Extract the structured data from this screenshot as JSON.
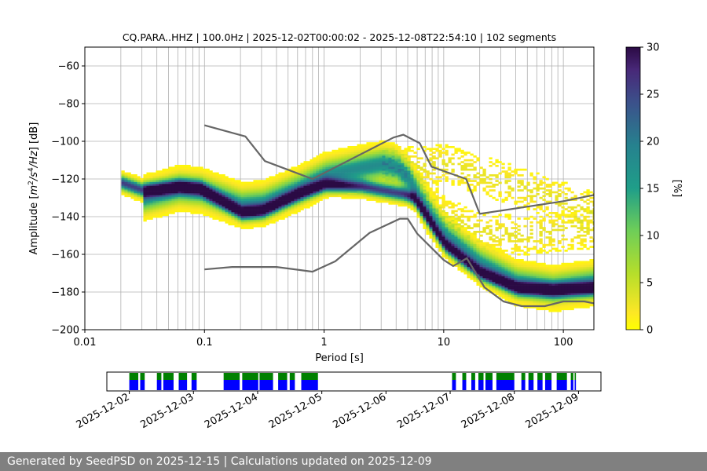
{
  "chart_data": {
    "type": "heatmap",
    "title": "CQ.PARA..HHZ | 100.0Hz | 2025-12-02T00:00:02 - 2025-12-08T22:54:10 | 102 segments",
    "xlabel": "Period [s]",
    "ylabel": "Amplitude [m²/s⁴/Hz] [dB]",
    "xscale": "log",
    "xlim": [
      0.01,
      180
    ],
    "ylim": [
      -200,
      -50
    ],
    "xticks": [
      {
        "value": 0.01,
        "label": "0.01"
      },
      {
        "value": 0.1,
        "label": "0.1"
      },
      {
        "value": 1,
        "label": "1"
      },
      {
        "value": 10,
        "label": "10"
      },
      {
        "value": 100,
        "label": "100"
      }
    ],
    "yticks": [
      {
        "value": -60,
        "label": "−60"
      },
      {
        "value": -80,
        "label": "−80"
      },
      {
        "value": -100,
        "label": "−100"
      },
      {
        "value": -120,
        "label": "−120"
      },
      {
        "value": -140,
        "label": "−140"
      },
      {
        "value": -160,
        "label": "−160"
      },
      {
        "value": -180,
        "label": "−180"
      },
      {
        "value": -200,
        "label": "−200"
      }
    ],
    "colorbar": {
      "label": "[%]",
      "min": 0,
      "max": 30,
      "ticks": [
        {
          "value": 0,
          "label": "0"
        },
        {
          "value": 5,
          "label": "5"
        },
        {
          "value": 10,
          "label": "10"
        },
        {
          "value": 15,
          "label": "15"
        },
        {
          "value": 20,
          "label": "20"
        },
        {
          "value": 25,
          "label": "25"
        },
        {
          "value": 30,
          "label": "30"
        }
      ]
    },
    "nhnm": {
      "name": "New High Noise Model",
      "points": [
        [
          0.1,
          -91.5
        ],
        [
          0.22,
          -97.4
        ],
        [
          0.32,
          -110.5
        ],
        [
          0.8,
          -120
        ],
        [
          3.8,
          -98
        ],
        [
          4.6,
          -96.5
        ],
        [
          6.3,
          -101
        ],
        [
          7.9,
          -113.5
        ],
        [
          15.4,
          -120
        ],
        [
          20,
          -138.5
        ],
        [
          100,
          -131.8
        ],
        [
          180,
          -128.5
        ]
      ]
    },
    "nlnm": {
      "name": "New Low Noise Model",
      "points": [
        [
          0.1,
          -168
        ],
        [
          0.17,
          -166.7
        ],
        [
          0.4,
          -166.7
        ],
        [
          0.8,
          -169.2
        ],
        [
          1.24,
          -163.7
        ],
        [
          2.4,
          -148.6
        ],
        [
          4.3,
          -141.1
        ],
        [
          5,
          -141.1
        ],
        [
          6,
          -149
        ],
        [
          10,
          -163
        ],
        [
          12,
          -166.2
        ],
        [
          15.6,
          -162.1
        ],
        [
          21.9,
          -177.5
        ],
        [
          31.6,
          -185
        ],
        [
          45,
          -187.5
        ],
        [
          70,
          -187.5
        ],
        [
          100,
          -185
        ],
        [
          150,
          -185
        ],
        [
          180,
          -186
        ]
      ]
    },
    "density_bands": [
      {
        "name": "microseism peak",
        "points": [
          [
            0.03,
            -130
          ],
          [
            0.06,
            -125
          ],
          [
            0.09,
            -126
          ],
          [
            0.2,
            -134
          ],
          [
            0.3,
            -133
          ],
          [
            0.6,
            -125
          ],
          [
            1,
            -118
          ],
          [
            2,
            -114
          ],
          [
            3,
            -112
          ],
          [
            4,
            -114
          ],
          [
            5,
            -120
          ],
          [
            7,
            -136
          ],
          [
            10,
            -150
          ],
          [
            20,
            -165
          ],
          [
            40,
            -175
          ],
          [
            80,
            -178
          ],
          [
            180,
            -175
          ]
        ],
        "width_db": 8,
        "peak_pct": 18
      },
      {
        "name": "lower branch",
        "points": [
          [
            0.02,
            -122
          ],
          [
            0.03,
            -126
          ],
          [
            0.06,
            -124
          ],
          [
            0.09,
            -125
          ],
          [
            0.2,
            -138
          ],
          [
            0.3,
            -137
          ],
          [
            0.6,
            -128
          ],
          [
            1,
            -123
          ],
          [
            2,
            -124
          ],
          [
            3,
            -126
          ],
          [
            4.5,
            -128
          ],
          [
            5.5,
            -130
          ],
          [
            7,
            -140
          ],
          [
            10,
            -155
          ],
          [
            20,
            -170
          ],
          [
            40,
            -178
          ],
          [
            80,
            -179
          ],
          [
            180,
            -178
          ]
        ],
        "width_db": 4,
        "peak_pct": 26
      },
      {
        "name": "scattered upper",
        "points": [
          [
            3,
            -112
          ],
          [
            6,
            -114
          ],
          [
            10,
            -112
          ],
          [
            20,
            -118
          ],
          [
            50,
            -126
          ],
          [
            100,
            -132
          ],
          [
            180,
            -138
          ]
        ],
        "width_db": 10,
        "peak_pct": 3
      },
      {
        "name": "scattered mid",
        "points": [
          [
            6,
            -125
          ],
          [
            10,
            -140
          ],
          [
            20,
            -148
          ],
          [
            40,
            -150
          ],
          [
            80,
            -148
          ],
          [
            180,
            -146
          ]
        ],
        "width_db": 10,
        "peak_pct": 3
      }
    ],
    "availability": {
      "dates": [
        "2025-12-02",
        "2025-12-03",
        "2025-12-04",
        "2025-12-05",
        "2025-12-06",
        "2025-12-07",
        "2025-12-08",
        "2025-12-09"
      ],
      "range_days": [
        -0.35,
        7.35
      ],
      "segments": [
        [
          0.0,
          0.14
        ],
        [
          0.17,
          0.24
        ],
        [
          0.43,
          0.5
        ],
        [
          0.53,
          0.69
        ],
        [
          0.77,
          0.9
        ],
        [
          0.97,
          1.05
        ],
        [
          1.47,
          1.72
        ],
        [
          1.76,
          2.01
        ],
        [
          2.03,
          2.24
        ],
        [
          2.32,
          2.46
        ],
        [
          2.5,
          2.58
        ],
        [
          2.68,
          2.94
        ],
        [
          5.03,
          5.09
        ],
        [
          5.19,
          5.25
        ],
        [
          5.33,
          5.39
        ],
        [
          5.44,
          5.52
        ],
        [
          5.55,
          5.66
        ],
        [
          5.72,
          6.0
        ],
        [
          6.11,
          6.17
        ],
        [
          6.22,
          6.3
        ],
        [
          6.36,
          6.44
        ],
        [
          6.48,
          6.58
        ],
        [
          6.66,
          6.82
        ],
        [
          6.88,
          6.92
        ],
        [
          6.94,
          6.96
        ]
      ],
      "data_color": "#0000ff",
      "gap_color": "#008000"
    },
    "colormap": "viridis"
  },
  "footer": {
    "text": "Generated by SeedPSD on 2025-12-15 | Calculations updated on 2025-12-09"
  }
}
